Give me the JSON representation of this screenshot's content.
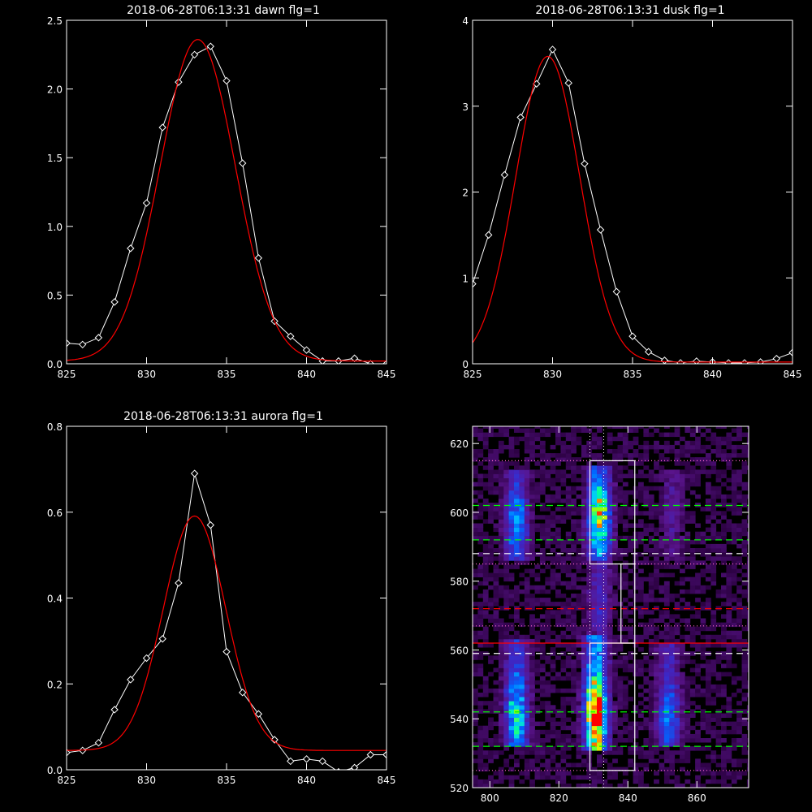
{
  "chart_data": [
    {
      "type": "line",
      "title": "2018-06-28T06:13:31 dawn flg=1",
      "xlim": [
        825,
        845
      ],
      "ylim": [
        0,
        2.5
      ],
      "xticks": [
        "825",
        "830",
        "835",
        "840",
        "845"
      ],
      "yticks": [
        "0.0",
        "0.5",
        "1.0",
        "1.5",
        "2.0",
        "2.5"
      ],
      "series": [
        {
          "values": [
            [
              825,
              0.15
            ],
            [
              826,
              0.14
            ],
            [
              827,
              0.19
            ],
            [
              828,
              0.45
            ],
            [
              829,
              0.84
            ],
            [
              830,
              1.17
            ],
            [
              831,
              1.72
            ],
            [
              832,
              2.05
            ],
            [
              833,
              2.25
            ],
            [
              834,
              2.31
            ],
            [
              835,
              2.06
            ],
            [
              836,
              1.46
            ],
            [
              837,
              0.77
            ],
            [
              838,
              0.31
            ],
            [
              839,
              0.2
            ],
            [
              840,
              0.1
            ],
            [
              841,
              0.02
            ],
            [
              842,
              0.02
            ],
            [
              843,
              0.04
            ],
            [
              844,
              0.0
            ],
            [
              845,
              0.0
            ]
          ],
          "color": "#ffffff"
        },
        {
          "gauss": {
            "amp": 2.34,
            "center": 833.2,
            "sigma": 2.35,
            "offset": 0.02
          },
          "color": "#ff0000"
        }
      ]
    },
    {
      "type": "line",
      "title": "2018-06-28T06:13:31 dusk flg=1",
      "xlim": [
        825,
        845
      ],
      "ylim": [
        0,
        4
      ],
      "xticks": [
        "825",
        "830",
        "835",
        "840",
        "845"
      ],
      "yticks": [
        "0",
        "1",
        "2",
        "3",
        "4"
      ],
      "series": [
        {
          "values": [
            [
              825,
              0.93
            ],
            [
              826,
              1.5
            ],
            [
              827,
              2.2
            ],
            [
              828,
              2.87
            ],
            [
              829,
              3.26
            ],
            [
              830,
              3.66
            ],
            [
              831,
              3.27
            ],
            [
              832,
              2.33
            ],
            [
              833,
              1.56
            ],
            [
              834,
              0.84
            ],
            [
              835,
              0.32
            ],
            [
              836,
              0.14
            ],
            [
              837,
              0.04
            ],
            [
              838,
              0.01
            ],
            [
              839,
              0.03
            ],
            [
              840,
              0.02
            ],
            [
              841,
              0.01
            ],
            [
              842,
              0.01
            ],
            [
              843,
              0.02
            ],
            [
              844,
              0.06
            ],
            [
              845,
              0.13
            ]
          ],
          "color": "#ffffff"
        },
        {
          "gauss": {
            "amp": 3.56,
            "center": 829.7,
            "sigma": 2.0,
            "offset": 0.02
          },
          "color": "#ff0000"
        }
      ]
    },
    {
      "type": "line",
      "title": "2018-06-28T06:13:31 aurora flg=1",
      "xlim": [
        825,
        845
      ],
      "ylim": [
        0,
        0.8
      ],
      "xticks": [
        "825",
        "830",
        "835",
        "840",
        "845"
      ],
      "yticks": [
        "0.0",
        "0.2",
        "0.4",
        "0.6",
        "0.8"
      ],
      "series": [
        {
          "values": [
            [
              825,
              0.04
            ],
            [
              826,
              0.045
            ],
            [
              827,
              0.063
            ],
            [
              828,
              0.14
            ],
            [
              829,
              0.21
            ],
            [
              830,
              0.26
            ],
            [
              831,
              0.305
            ],
            [
              832,
              0.435
            ],
            [
              833,
              0.69
            ],
            [
              834,
              0.57
            ],
            [
              835,
              0.275
            ],
            [
              836,
              0.18
            ],
            [
              837,
              0.13
            ],
            [
              838,
              0.07
            ],
            [
              839,
              0.02
            ],
            [
              840,
              0.025
            ],
            [
              841,
              0.02
            ],
            [
              842,
              -0.005
            ],
            [
              843,
              0.005
            ],
            [
              844,
              0.035
            ],
            [
              845,
              0.035
            ]
          ],
          "color": "#ffffff"
        },
        {
          "gauss": {
            "amp": 0.546,
            "center": 833.0,
            "sigma": 1.95,
            "offset": 0.045
          },
          "color": "#ff0000"
        }
      ]
    },
    {
      "type": "heatmap",
      "xlim": [
        795,
        875
      ],
      "ylim": [
        520,
        625
      ],
      "xticks": [
        "800",
        "820",
        "840",
        "860"
      ],
      "yticks": [
        "520",
        "540",
        "560",
        "580",
        "600",
        "620"
      ],
      "columns": [
        {
          "x": 807,
          "y0": 531,
          "y1": 563,
          "peak": 541,
          "intensity": 0.6
        },
        {
          "x": 807,
          "y0": 586,
          "y1": 612,
          "peak": 596,
          "intensity": 0.45
        },
        {
          "x": 830,
          "y0": 530,
          "y1": 564,
          "peak": 541,
          "intensity": 1.0
        },
        {
          "x": 831,
          "y0": 564,
          "y1": 586,
          "peak": 575,
          "intensity": 0.22
        },
        {
          "x": 831,
          "y0": 585,
          "y1": 613,
          "peak": 598,
          "intensity": 0.72
        },
        {
          "x": 851,
          "y0": 531,
          "y1": 562,
          "peak": 540,
          "intensity": 0.4
        },
        {
          "x": 852,
          "y0": 586,
          "y1": 612,
          "peak": 599,
          "intensity": 0.14
        }
      ],
      "boxes": [
        [
          829,
          525,
          842,
          562
        ],
        [
          838,
          562,
          842,
          585
        ],
        [
          829,
          585,
          842,
          615
        ]
      ],
      "white_dotted_vlines": [
        829,
        833
      ],
      "pink_dotted_hlines": [
        525,
        567,
        585,
        615
      ],
      "green_dashed_hlines": [
        532,
        542,
        592,
        602
      ],
      "white_dashed_hlines": [
        559,
        588
      ],
      "red_dashed_hlines": [
        572
      ],
      "red_solid_hlines": [
        562
      ],
      "colors": {
        "green": "#00ff00",
        "white": "#ffffff",
        "red": "#ff0000",
        "pink": "#ff66cc"
      }
    }
  ]
}
